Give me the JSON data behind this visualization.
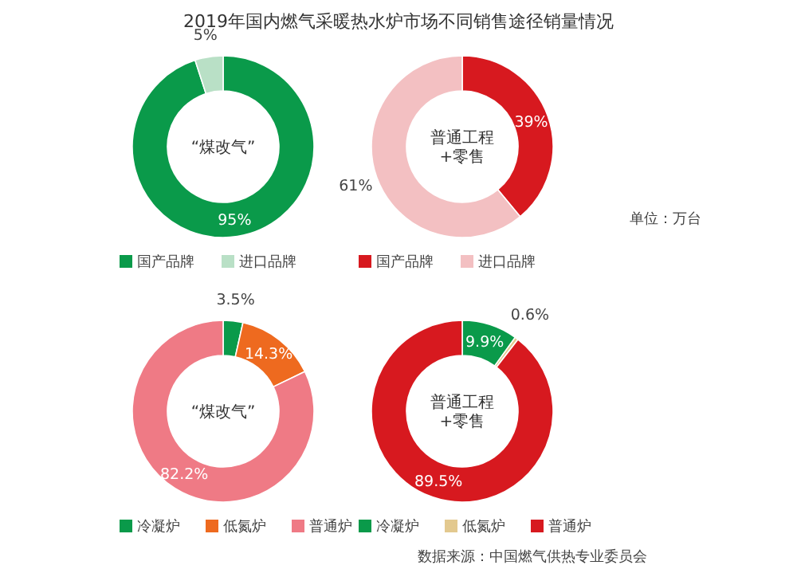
{
  "chart_data": [
    {
      "type": "donut",
      "title": "2019年国内燃气采暖热水炉市场不同销售途径销量情况",
      "categories": [
        "国产品牌",
        "进口品牌"
      ],
      "values": [
        95,
        5
      ],
      "colors": [
        "#0a9a4a",
        "#b9e0c6"
      ],
      "value_labels": [
        "95%",
        "5%"
      ],
      "annotations": [
        "“煤改气”"
      ],
      "legend": "bottom"
    },
    {
      "type": "donut",
      "categories": [
        "国产品牌",
        "进口品牌"
      ],
      "values": [
        39,
        61
      ],
      "colors": [
        "#d7191f",
        "#f3c0c2"
      ],
      "value_labels": [
        "39%",
        "61%"
      ],
      "annotations": [
        "普通工程\n+零售",
        "单位：万台"
      ],
      "legend": "bottom"
    },
    {
      "type": "donut",
      "categories": [
        "冷凝炉",
        "低氮炉",
        "普通炉"
      ],
      "values": [
        3.5,
        14.3,
        82.2
      ],
      "colors": [
        "#0a9a4a",
        "#ee6a1f",
        "#ef7a85"
      ],
      "value_labels": [
        "3.5%",
        "14.3%",
        "82.2%"
      ],
      "annotations": [
        "“煤改气”"
      ],
      "legend": "bottom"
    },
    {
      "type": "donut",
      "categories": [
        "冷凝炉",
        "低氮炉",
        "普通炉"
      ],
      "values": [
        9.9,
        0.6,
        89.5
      ],
      "colors": [
        "#0a9a4a",
        "#e3c98f",
        "#d7191f"
      ],
      "value_labels": [
        "9.9%",
        "0.6%",
        "89.5%"
      ],
      "annotations": [
        "普通工程\n+零售",
        "数据来源：中国燃气供热专业委员会"
      ],
      "legend": "bottom"
    }
  ]
}
